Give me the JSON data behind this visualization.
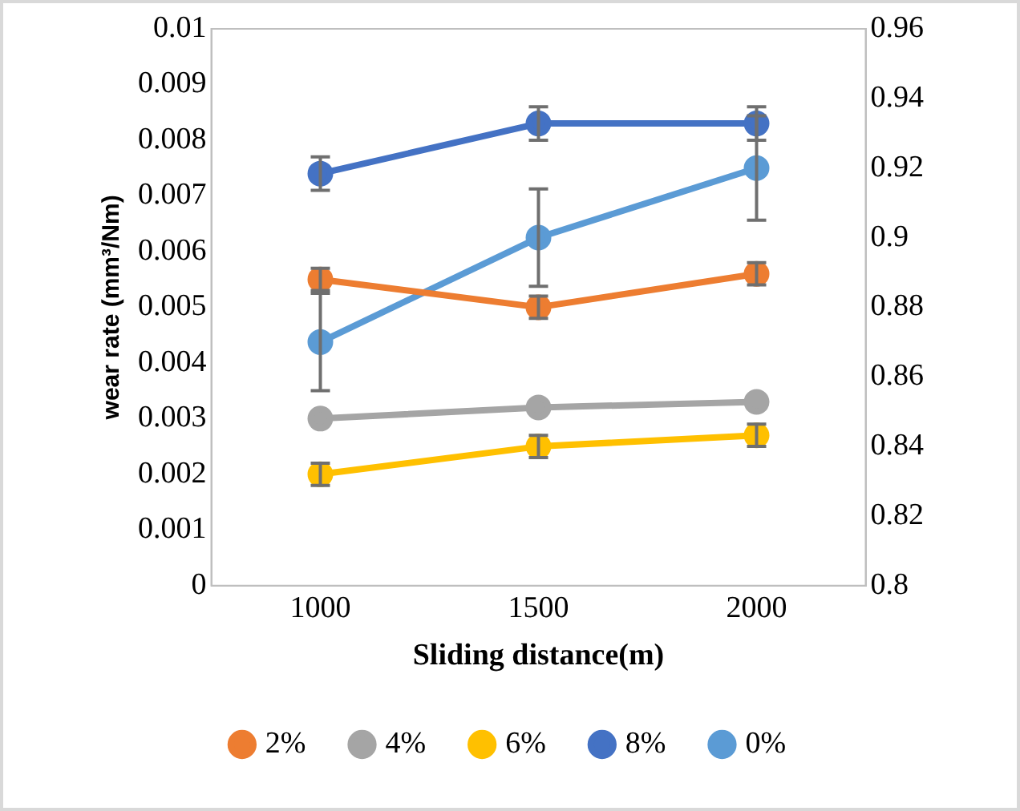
{
  "chart_data": {
    "type": "line",
    "xlabel": "Sliding distance(m)",
    "ylabel": "wear rate (mm³/Nm)",
    "categories": [
      "1000",
      "1500",
      "2000"
    ],
    "ylim": [
      0,
      0.01
    ],
    "yticks": [
      0,
      0.001,
      0.002,
      0.003,
      0.004,
      0.005,
      0.006,
      0.007,
      0.008,
      0.009,
      0.01
    ],
    "y2lim": [
      0.8,
      0.96
    ],
    "y2ticks": [
      0.8,
      0.82,
      0.84,
      0.86,
      0.88,
      0.9,
      0.92,
      0.94,
      0.96
    ],
    "series": [
      {
        "name": "2%",
        "color": "#ed7d31",
        "values": [
          0.0055,
          0.005,
          0.0056
        ],
        "errors": [
          0.0002,
          0.0002,
          0.0002
        ]
      },
      {
        "name": "4%",
        "color": "#a5a5a5",
        "values": [
          0.003,
          0.0032,
          0.0033
        ]
      },
      {
        "name": "6%",
        "color": "#ffc000",
        "values": [
          0.002,
          0.0025,
          0.0027
        ],
        "errors": [
          0.0002,
          0.0002,
          0.0002
        ]
      },
      {
        "name": "8%",
        "color": "#4472c4",
        "values": [
          0.0074,
          0.0083,
          0.0083
        ],
        "errors": [
          0.0003,
          0.0003,
          0.0003
        ]
      },
      {
        "name": "0%",
        "color": "#5b9bd5",
        "values": [
          0.87,
          0.9,
          0.92
        ],
        "axis": "y2",
        "errors": [
          0.014,
          0.014,
          0.015
        ]
      }
    ],
    "grid": false,
    "legend": "bottom",
    "marker": "circle",
    "line_style": "solid"
  }
}
